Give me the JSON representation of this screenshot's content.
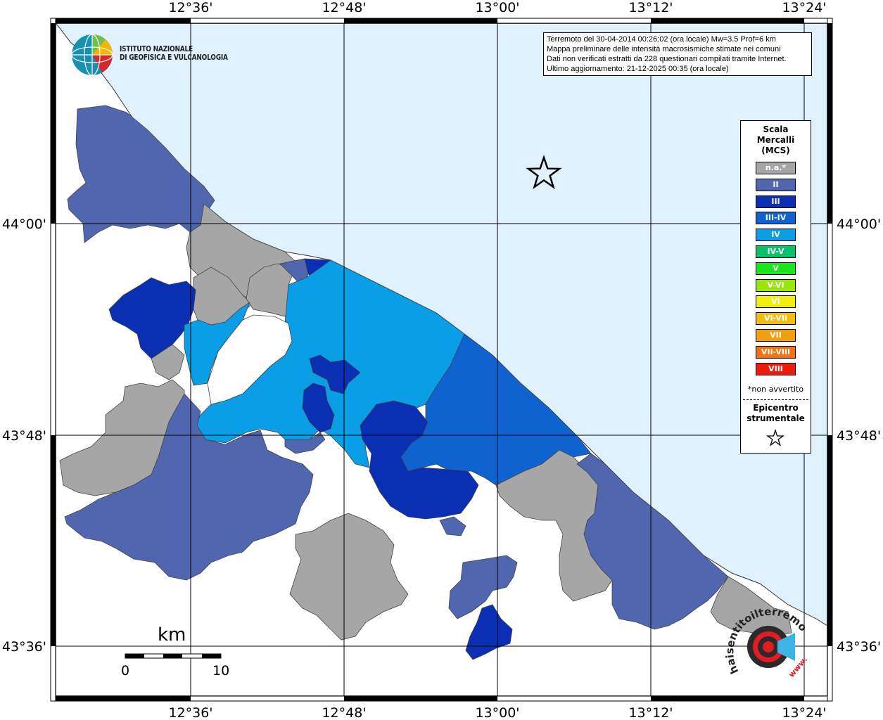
{
  "map": {
    "title_lines": [
      "Terremoto del 30-04-2014 00:26:02 (ora locale) Mw=3.5 Prof=6 km",
      "Mappa preliminare delle intensità macrosismiche stimate nei comuni",
      "Dati non verificati estratti da 228 questionari compilati tramite Internet.",
      "Ultimo aggiornamento: 21-12-2025 00:35 (ora locale)"
    ],
    "lon_ticks": [
      "12°36'",
      "12°48'",
      "13°00'",
      "13°12'",
      "13°24'"
    ],
    "lat_ticks": [
      "44°00'",
      "43°48'",
      "43°36'"
    ],
    "institute_lines": [
      "ISTITUTO NAZIONALE",
      "DI GEOFISICA E VULCANOLOGIA"
    ],
    "scale_bar": {
      "unit": "km",
      "labels": [
        "0",
        "10"
      ]
    },
    "site_logo": {
      "text": "haisentitoilterremoto.it",
      "prefix": "www."
    }
  },
  "legend": {
    "title_lines": [
      "Scala",
      "Mercalli",
      "(MCS)"
    ],
    "items": [
      {
        "label": "n.a.*",
        "color": "#a6a6a6"
      },
      {
        "label": "II",
        "color": "#5066ae"
      },
      {
        "label": "III",
        "color": "#0a2fb3"
      },
      {
        "label": "III-IV",
        "color": "#0f63d0"
      },
      {
        "label": "IV",
        "color": "#0a9ee6"
      },
      {
        "label": "IV-V",
        "color": "#0bbf6c"
      },
      {
        "label": "V",
        "color": "#19e61c"
      },
      {
        "label": "V-VI",
        "color": "#9be60a"
      },
      {
        "label": "VI",
        "color": "#f2ee0c"
      },
      {
        "label": "VI-VII",
        "color": "#f2bd0c"
      },
      {
        "label": "VII",
        "color": "#f59e0b"
      },
      {
        "label": "VII-VIII",
        "color": "#f2720c"
      },
      {
        "label": "VIII",
        "color": "#ee1a0c"
      }
    ],
    "note": "*non avvertito",
    "epicentre_lines": [
      "Epicentro",
      "strumentale"
    ]
  },
  "colors": {
    "sea": "#dff1fd",
    "land_unrated": "#ffffff",
    "na": "#a6a6a6",
    "II": "#5066ae",
    "III": "#0a2fb3",
    "III-IV": "#0f63d0",
    "IV": "#0a9ee6"
  }
}
